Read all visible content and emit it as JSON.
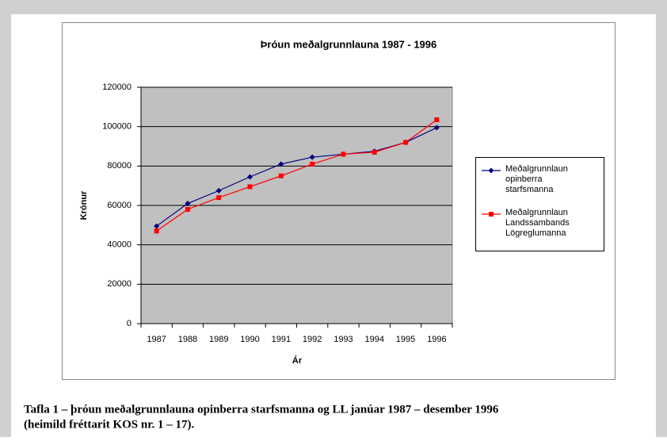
{
  "chart_data": {
    "type": "line",
    "title": "Þróun meðalgrunnlauna 1987 - 1996",
    "x_label": "Ár",
    "y_label": "Krónur",
    "categories": [
      "1987",
      "1988",
      "1989",
      "1990",
      "1991",
      "1992",
      "1993",
      "1994",
      "1995",
      "1996"
    ],
    "series": [
      {
        "name": "Meðalgrunnlaun opinberra starfsmanna",
        "color": "#000080",
        "marker": "diamond",
        "values": [
          49500,
          61000,
          67500,
          74500,
          81000,
          84500,
          86000,
          87500,
          92000,
          99500
        ]
      },
      {
        "name": "Meðalgrunnlaun Landssambands Lögreglumanna",
        "color": "#ff0000",
        "marker": "square",
        "values": [
          47000,
          58000,
          64000,
          69500,
          75000,
          81000,
          86000,
          87000,
          92000,
          103500
        ]
      }
    ],
    "ylim": [
      0,
      120000
    ],
    "yticks": [
      0,
      20000,
      40000,
      60000,
      80000,
      100000,
      120000
    ],
    "grid": true,
    "legend": "right"
  },
  "caption": {
    "line1": "Tafla 1 – þróun meðalgrunnlauna opinberra starfsmanna og LL janúar 1987 – desember 1996",
    "line2": "(heimild fréttarit KOS nr. 1 – 17)."
  }
}
